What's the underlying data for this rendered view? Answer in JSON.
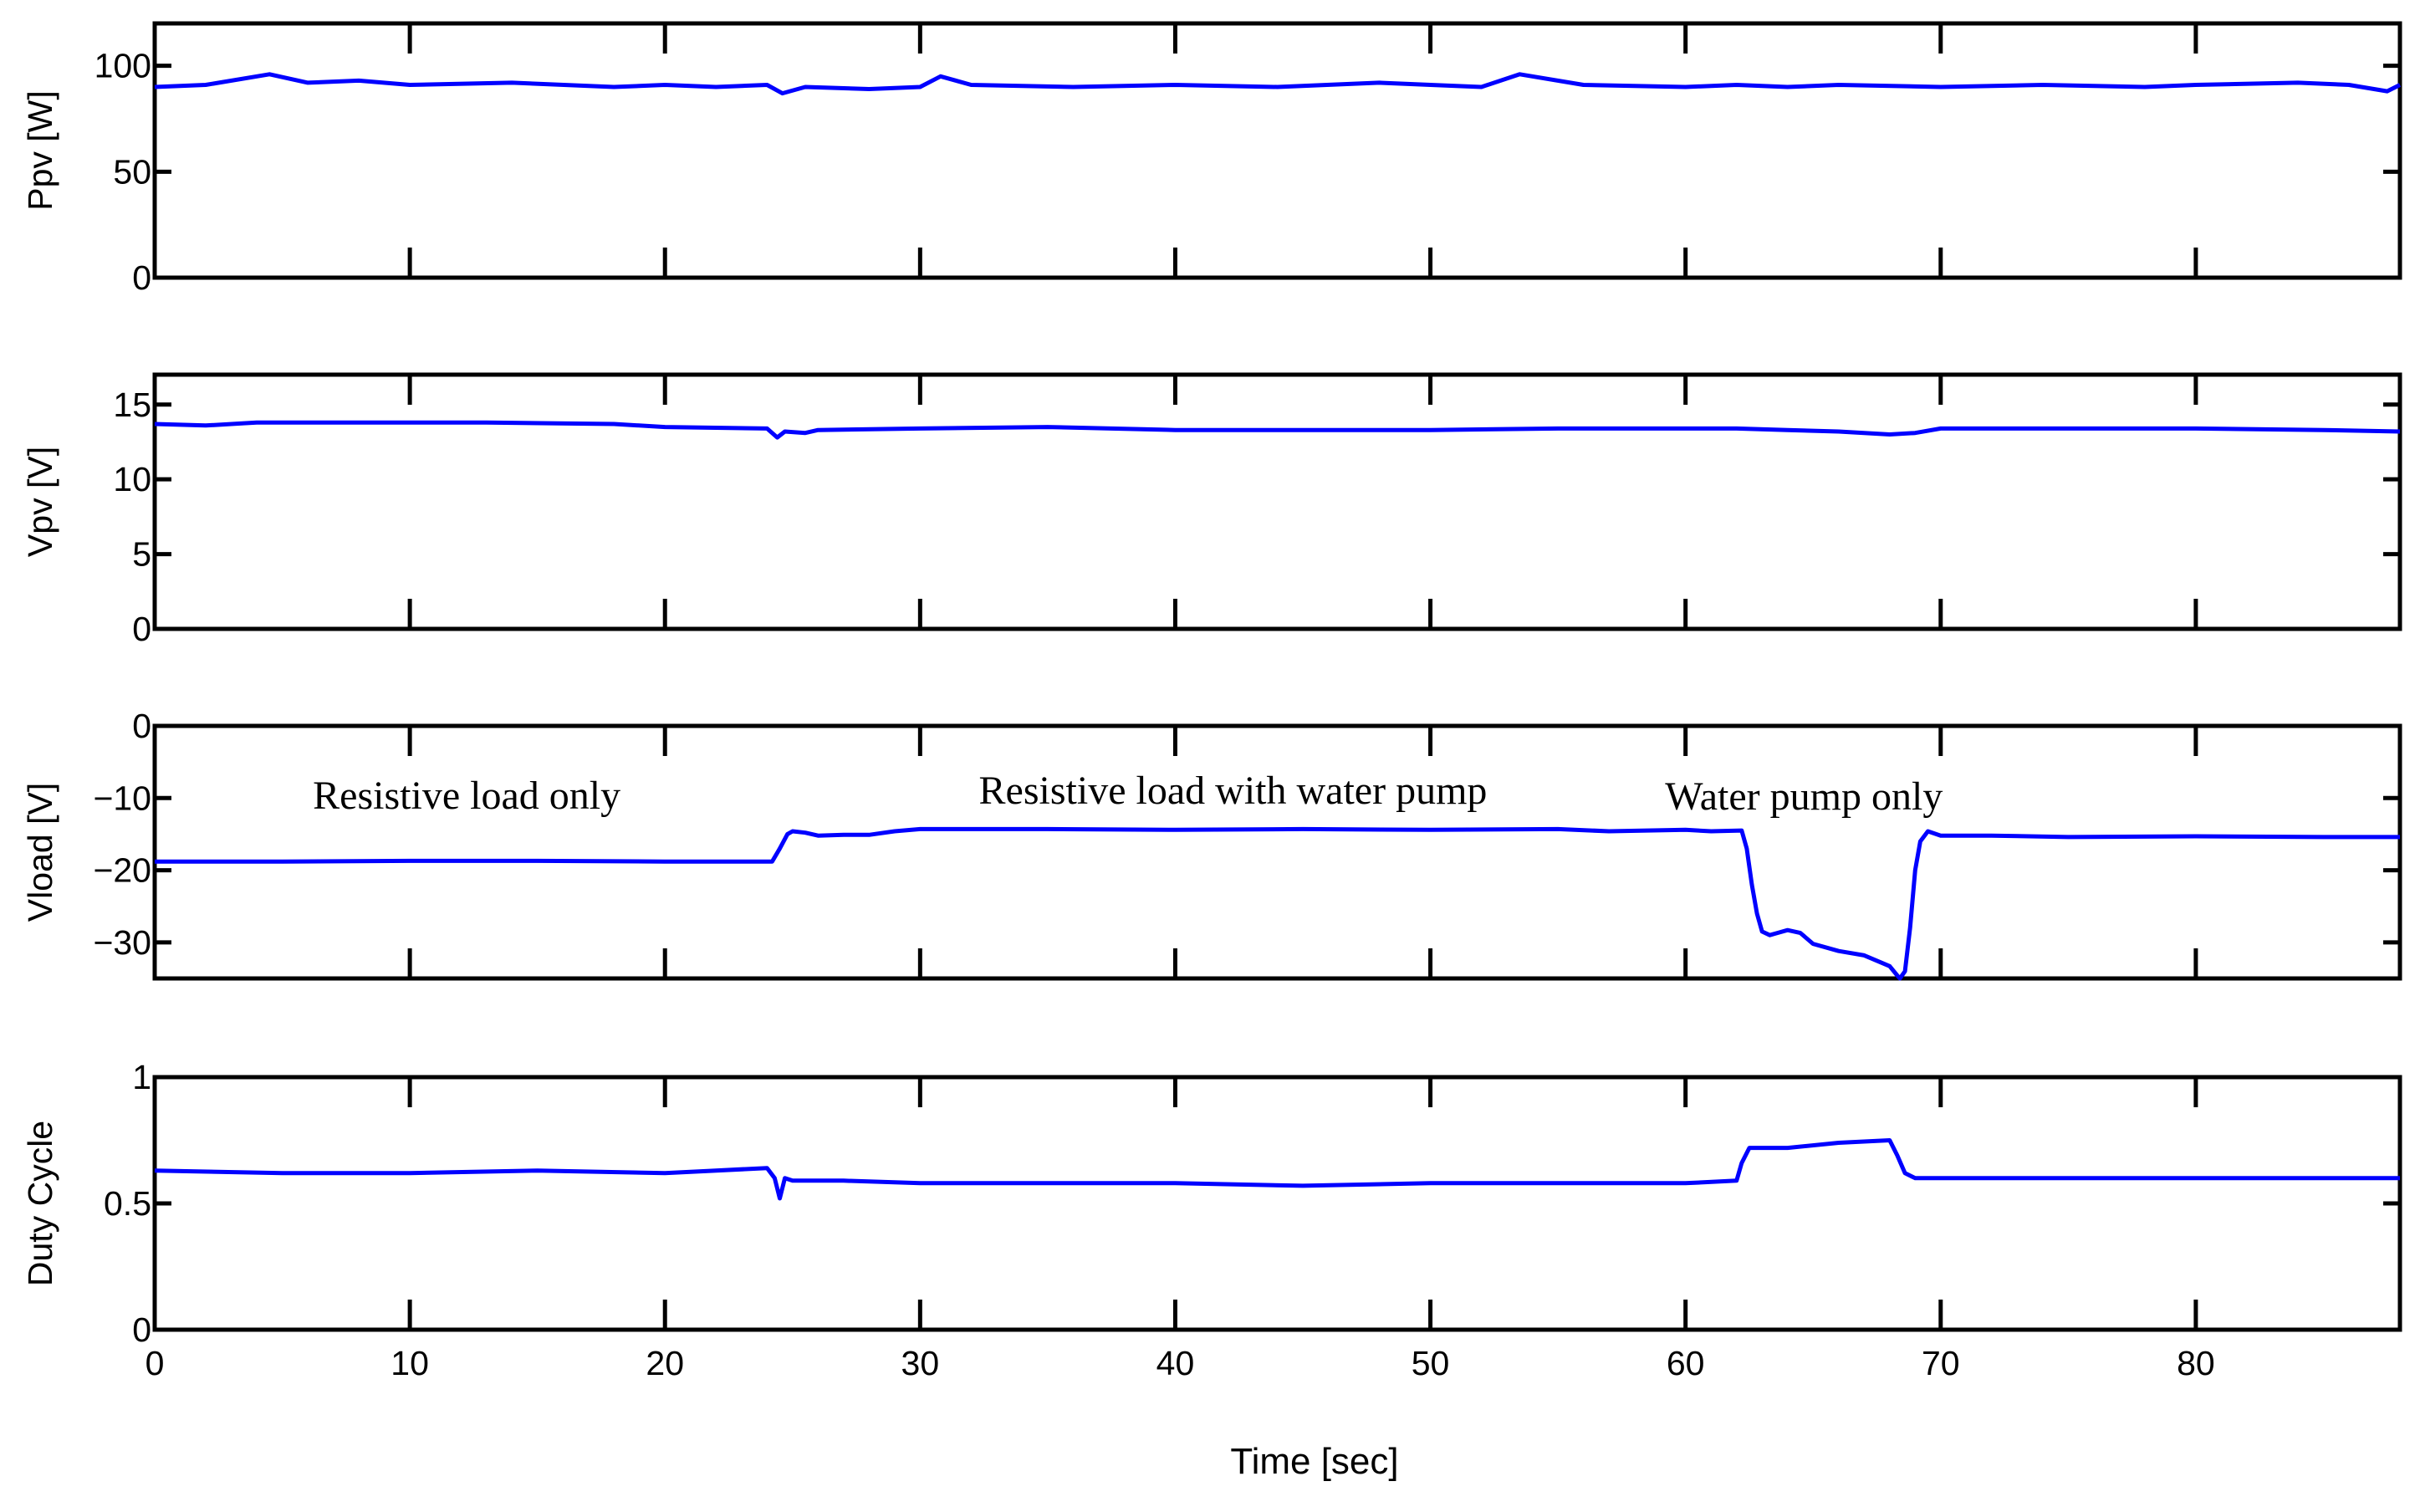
{
  "chart_data": {
    "type": "line",
    "xlabel": "Time [sec]",
    "xlim": [
      0,
      88
    ],
    "xticks": [
      0,
      10,
      20,
      30,
      40,
      50,
      60,
      70,
      80
    ],
    "xtick_labels": [
      "0",
      "10",
      "20",
      "30",
      "40",
      "50",
      "60",
      "70",
      "80"
    ],
    "line_color": "#0000ff",
    "axis_color": "#000000",
    "grid": false,
    "panels": [
      {
        "id": "ppv",
        "ylabel": "Ppv [W]",
        "ylim": [
          0,
          120
        ],
        "yticks": [
          0,
          50,
          100
        ],
        "ytick_labels": [
          "0",
          "50",
          "100"
        ],
        "series": [
          {
            "x": [
              0,
              2,
              4.5,
              6,
              8,
              10,
              14,
              18,
              20,
              22,
              24,
              24.6,
              25.5,
              28,
              30,
              30.8,
              32,
              36,
              40,
              44,
              48,
              50,
              52,
              53.5,
              56,
              60,
              62,
              64,
              66,
              70,
              74,
              78,
              80,
              84,
              86,
              87.5,
              88
            ],
            "y": [
              90,
              91,
              96,
              92,
              93,
              91,
              92,
              90,
              91,
              90,
              91,
              87,
              90,
              89,
              90,
              95,
              91,
              90,
              91,
              90,
              92,
              91,
              90,
              96,
              91,
              90,
              91,
              90,
              91,
              90,
              91,
              90,
              91,
              92,
              91,
              88,
              91
            ]
          }
        ]
      },
      {
        "id": "vpv",
        "ylabel": "Vpv [V]",
        "ylim": [
          0,
          17
        ],
        "yticks": [
          0,
          5,
          10,
          15
        ],
        "ytick_labels": [
          "0",
          "5",
          "10",
          "15"
        ],
        "series": [
          {
            "x": [
              0,
              2,
              4,
              10,
              13,
              18,
              20,
              24,
              24.4,
              24.7,
              25.5,
              26,
              30,
              35,
              40,
              45,
              50,
              55,
              60,
              62,
              64,
              66,
              68,
              69,
              70,
              80,
              85,
              88
            ],
            "y": [
              13.7,
              13.6,
              13.8,
              13.8,
              13.8,
              13.7,
              13.5,
              13.4,
              12.8,
              13.2,
              13.1,
              13.3,
              13.4,
              13.5,
              13.3,
              13.3,
              13.3,
              13.4,
              13.4,
              13.4,
              13.3,
              13.2,
              13.0,
              13.1,
              13.4,
              13.4,
              13.3,
              13.2
            ]
          }
        ]
      },
      {
        "id": "vload",
        "ylabel": "Vload  [V]",
        "ylim": [
          -35,
          0
        ],
        "yticks": [
          -30,
          -20,
          -10,
          0
        ],
        "ytick_labels": [
          "−30",
          "−20",
          "−10",
          "0"
        ],
        "series": [
          {
            "x": [
              0,
              5,
              10,
              15,
              20,
              24.2,
              24.5,
              24.8,
              25,
              25.5,
              26,
              27,
              28,
              29,
              30,
              35,
              40,
              45,
              50,
              55,
              57,
              60,
              61,
              62.2,
              62.4,
              62.6,
              62.8,
              63,
              63.3,
              63.6,
              64,
              64.5,
              65,
              66,
              67,
              68,
              68.3,
              68.4,
              68.6,
              68.8,
              69,
              69.2,
              69.5,
              70,
              72,
              75,
              80,
              85,
              88
            ],
            "y": [
              -18.8,
              -18.8,
              -18.7,
              -18.7,
              -18.8,
              -18.8,
              -17,
              -15,
              -14.6,
              -14.8,
              -15.2,
              -15.1,
              -15.1,
              -14.6,
              -14.3,
              -14.3,
              -14.4,
              -14.3,
              -14.4,
              -14.3,
              -14.6,
              -14.4,
              -14.6,
              -14.5,
              -17,
              -22,
              -26,
              -28.5,
              -29,
              -28.7,
              -28.3,
              -28.7,
              -30.2,
              -31.2,
              -31.8,
              -33.3,
              -34.6,
              -35,
              -34,
              -28,
              -20,
              -16,
              -14.6,
              -15.2,
              -15.2,
              -15.4,
              -15.3,
              -15.4,
              -15.4
            ]
          }
        ],
        "annotations": [
          {
            "text": "Resistive load only",
            "x": 6.2,
            "y": -11.5
          },
          {
            "text": "Resistive load with water pump",
            "x": 32.3,
            "y": -10.8
          },
          {
            "text": "Water pump only",
            "x": 59.2,
            "y": -11.6
          }
        ]
      },
      {
        "id": "duty",
        "ylabel": "Duty Cycle",
        "ylim": [
          0,
          1
        ],
        "yticks": [
          0,
          0.5,
          1
        ],
        "ytick_labels": [
          "0",
          "0.5",
          "1"
        ],
        "series": [
          {
            "x": [
              0,
              5,
              10,
              15,
              20,
              24,
              24.3,
              24.5,
              24.7,
              25,
              27,
              30,
              35,
              40,
              45,
              50,
              55,
              60,
              62,
              62.2,
              62.5,
              64,
              66,
              68,
              68.3,
              68.6,
              69,
              70,
              75,
              80,
              85,
              88
            ],
            "y": [
              0.63,
              0.62,
              0.62,
              0.63,
              0.62,
              0.64,
              0.6,
              0.52,
              0.6,
              0.59,
              0.59,
              0.58,
              0.58,
              0.58,
              0.57,
              0.58,
              0.58,
              0.58,
              0.59,
              0.66,
              0.72,
              0.72,
              0.74,
              0.75,
              0.69,
              0.62,
              0.6,
              0.6,
              0.6,
              0.6,
              0.6,
              0.6
            ]
          }
        ]
      }
    ]
  }
}
